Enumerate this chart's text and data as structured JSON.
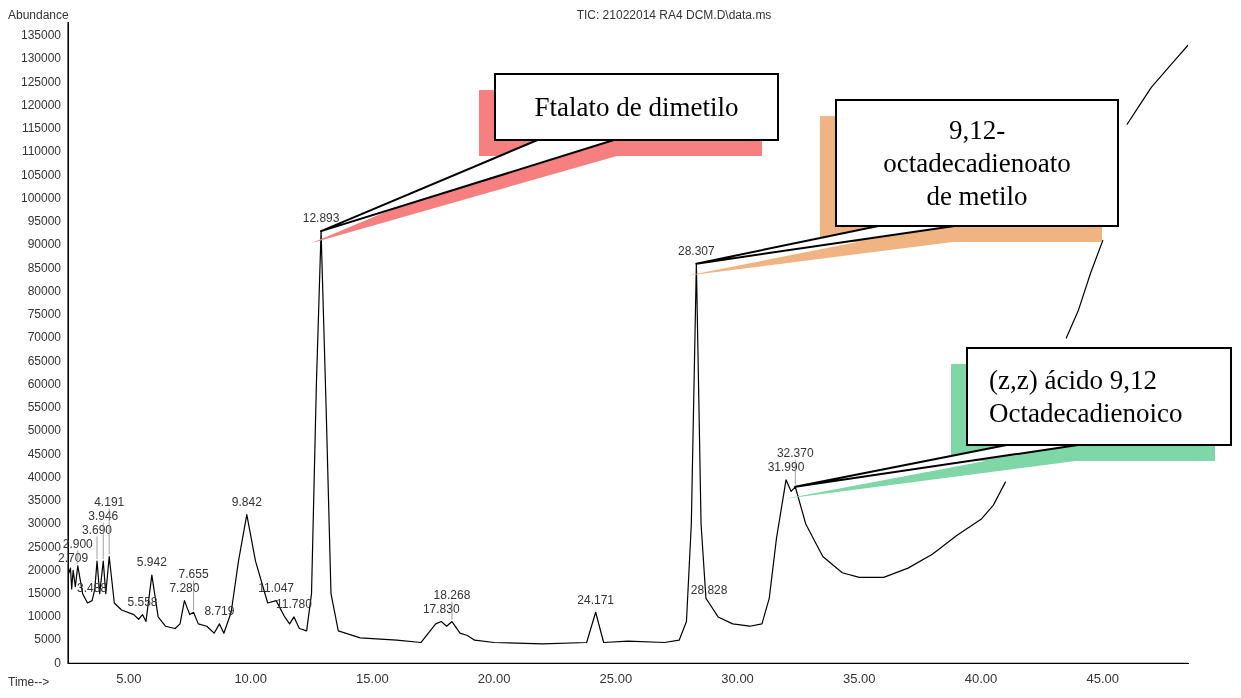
{
  "chart_data": {
    "type": "line",
    "title": "TIC: 21022014 RA4 DCM.D\\data.ms",
    "xlabel": "Time-->",
    "ylabel": "Abundance",
    "x": [
      2.5,
      2.6,
      2.65,
      2.709,
      2.8,
      2.9,
      3.1,
      3.3,
      3.488,
      3.6,
      3.69,
      3.8,
      3.946,
      4.05,
      4.191,
      4.4,
      4.7,
      5.2,
      5.4,
      5.558,
      5.7,
      5.942,
      6.2,
      6.5,
      6.9,
      7.1,
      7.28,
      7.5,
      7.655,
      7.85,
      8.2,
      8.5,
      8.719,
      8.9,
      9.2,
      9.5,
      9.842,
      10.2,
      10.7,
      11.047,
      11.4,
      11.6,
      11.78,
      12.0,
      12.3,
      12.5,
      12.7,
      12.893,
      13.1,
      13.3,
      13.6,
      14.5,
      16,
      17,
      17.3,
      17.6,
      17.83,
      18.05,
      18.268,
      18.6,
      18.9,
      19.2,
      20,
      22,
      23.8,
      24.171,
      24.5,
      25.5,
      27,
      27.6,
      27.9,
      28.1,
      28.307,
      28.5,
      28.7,
      28.828,
      29.2,
      29.8,
      30.5,
      31.0,
      31.3,
      31.6,
      31.99,
      32.2,
      32.37,
      32.8,
      33.5,
      34.3,
      35,
      36,
      37,
      38,
      39,
      40,
      40.5,
      41,
      41.5,
      42,
      42.5,
      43,
      43.5,
      44,
      44.5,
      45,
      45.5,
      46,
      46.5,
      47,
      47.5,
      48,
      48.5
    ],
    "series": [
      {
        "color": "#000000",
        "values": [
          19000,
          20500,
          16000,
          20000,
          16500,
          21000,
          15000,
          13000,
          13500,
          16000,
          22000,
          15000,
          22000,
          15000,
          23000,
          13000,
          11500,
          10500,
          9500,
          10500,
          9000,
          19000,
          10000,
          8000,
          7500,
          8500,
          13500,
          10500,
          11000,
          8500,
          8000,
          6500,
          8500,
          6500,
          11000,
          22000,
          32000,
          22000,
          13000,
          13500,
          10000,
          8500,
          10000,
          7500,
          7000,
          15000,
          60000,
          93000,
          55000,
          15000,
          7000,
          5500,
          5000,
          4500,
          6500,
          8500,
          9000,
          8000,
          9000,
          6500,
          6000,
          5000,
          4500,
          4200,
          4500,
          11000,
          4500,
          4800,
          4500,
          5000,
          9000,
          30000,
          86000,
          30000,
          14000,
          13000,
          10000,
          8500,
          8000,
          8500,
          14000,
          27000,
          39500,
          37000,
          38000,
          30000,
          23000,
          19500,
          18500,
          18500,
          20500,
          23500,
          27500,
          31000,
          34000,
          39000,
          null,
          null,
          null,
          null,
          70000,
          76000,
          84000,
          91000,
          null,
          116000,
          120000,
          124000,
          127000,
          130000,
          133000
        ]
      }
    ],
    "xlim": [
      2.5,
      48.5
    ],
    "xticks": [
      {
        "value": 5,
        "label": "5.00"
      },
      {
        "value": 10,
        "label": "10.00"
      },
      {
        "value": 15,
        "label": "15.00"
      },
      {
        "value": 20,
        "label": "20.00"
      },
      {
        "value": 25,
        "label": "25.00"
      },
      {
        "value": 30,
        "label": "30.00"
      },
      {
        "value": 35,
        "label": "35.00"
      },
      {
        "value": 40,
        "label": "40.00"
      },
      {
        "value": 45,
        "label": "45.00"
      }
    ],
    "ylim": [
      0,
      138000
    ],
    "yticks": [
      0,
      5000,
      10000,
      15000,
      20000,
      25000,
      30000,
      35000,
      40000,
      45000,
      50000,
      55000,
      60000,
      65000,
      70000,
      75000,
      80000,
      85000,
      90000,
      95000,
      100000,
      105000,
      110000,
      115000,
      120000,
      125000,
      130000,
      135000
    ],
    "grid": false,
    "legend": false,
    "marker": "none",
    "line_style": "solid",
    "annotations": [
      {
        "text": "2.709",
        "x": 2.709,
        "y": 20000
      },
      {
        "text": "2.900",
        "x": 2.9,
        "y": 21000
      },
      {
        "text": "3.488",
        "x": 3.488,
        "y": 13500
      },
      {
        "text": "3.690",
        "x": 3.69,
        "y": 22000
      },
      {
        "text": "3.946",
        "x": 3.946,
        "y": 22000
      },
      {
        "text": "4.191",
        "x": 4.191,
        "y": 23000
      },
      {
        "text": "5.558",
        "x": 5.558,
        "y": 10500
      },
      {
        "text": "5.942",
        "x": 5.942,
        "y": 19000
      },
      {
        "text": "7.280",
        "x": 7.28,
        "y": 13500
      },
      {
        "text": "7.655",
        "x": 7.655,
        "y": 11000
      },
      {
        "text": "8.719",
        "x": 8.719,
        "y": 8500
      },
      {
        "text": "9.842",
        "x": 9.842,
        "y": 32000
      },
      {
        "text": "11.047",
        "x": 11.047,
        "y": 13500
      },
      {
        "text": "11.780",
        "x": 11.78,
        "y": 10000
      },
      {
        "text": "12.893",
        "x": 12.893,
        "y": 93000
      },
      {
        "text": "17.830",
        "x": 17.83,
        "y": 9000
      },
      {
        "text": "18.268",
        "x": 18.268,
        "y": 9000
      },
      {
        "text": "24.171",
        "x": 24.171,
        "y": 11000
      },
      {
        "text": "28.307",
        "x": 28.307,
        "y": 86000
      },
      {
        "text": "28.828",
        "x": 28.828,
        "y": 13000
      },
      {
        "text": "31.990",
        "x": 31.99,
        "y": 39500
      },
      {
        "text": "32.370",
        "x": 32.37,
        "y": 38000
      },
      {
        "text": "Ftalato de dimetilo",
        "x": 12.893,
        "y": 93000
      },
      {
        "text": "9,12-\noctadecadienoato\nde metilo",
        "x": 28.307,
        "y": 86000
      },
      {
        "text": "(z,z) ácido 9,12\nOctadecadienoico",
        "x": 32.37,
        "y": 38000
      }
    ]
  }
}
